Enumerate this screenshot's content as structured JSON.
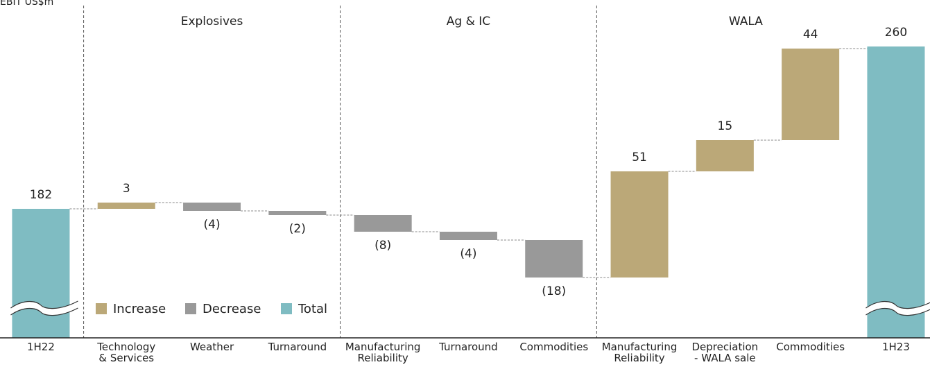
{
  "chart_data": {
    "type": "waterfall",
    "y_label": "EBIT US$m",
    "categories": [
      "1H22",
      "Technology\n& Services",
      "Weather",
      "Turnaround",
      "Manufacturing\nReliability",
      "Turnaround",
      "Commodities",
      "Manufacturing\nReliability",
      "Depreciation\n- WALA sale",
      "Commodities",
      "1H23"
    ],
    "kinds": [
      "total",
      "increase",
      "decrease",
      "decrease",
      "decrease",
      "decrease",
      "decrease",
      "increase",
      "increase",
      "increase",
      "total"
    ],
    "values": [
      182,
      3,
      -4,
      -2,
      -8,
      -4,
      -18,
      51,
      15,
      44,
      260
    ],
    "value_labels": [
      "182",
      "3",
      "(4)",
      "(2)",
      "(8)",
      "(4)",
      "(18)",
      "51",
      "15",
      "44",
      "260"
    ],
    "groups": [
      "Explosives",
      "Ag & IC",
      "WALA"
    ],
    "legend": [
      {
        "name": "Increase",
        "kind": "increase",
        "color": "#bba878"
      },
      {
        "name": "Decrease",
        "kind": "decrease",
        "color": "#999999"
      },
      {
        "name": "Total",
        "kind": "total",
        "color": "#7fbcc2"
      }
    ],
    "ylim": [
      120,
      275
    ]
  }
}
